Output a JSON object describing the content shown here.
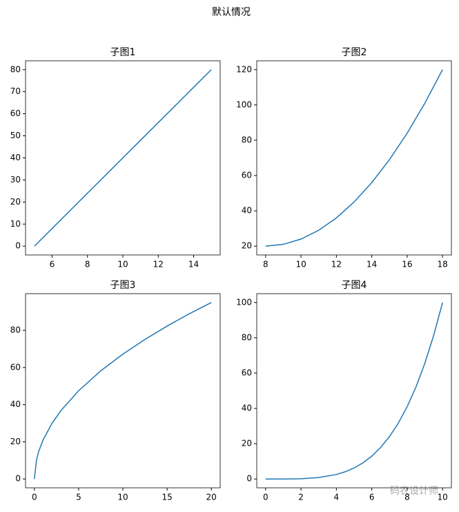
{
  "title": "默认情况",
  "watermark": "码农设计师",
  "chart_data": [
    {
      "type": "line",
      "title": "子图1",
      "x": [
        5,
        6,
        7,
        8,
        9,
        10,
        11,
        12,
        13,
        14,
        15
      ],
      "series": [
        {
          "color": "#1f77b4",
          "values": [
            0,
            8,
            16,
            24,
            32,
            40,
            48,
            56,
            64,
            72,
            80
          ]
        }
      ],
      "xlim": [
        4.5,
        15.5
      ],
      "xticks": [
        6,
        8,
        10,
        12,
        14
      ],
      "ylim": [
        -4,
        84
      ],
      "yticks": [
        0,
        10,
        20,
        30,
        40,
        50,
        60,
        70,
        80
      ]
    },
    {
      "type": "line",
      "title": "子图2",
      "x": [
        8,
        9,
        10,
        11,
        12,
        13,
        14,
        15,
        16,
        17,
        18
      ],
      "series": [
        {
          "color": "#1f77b4",
          "values": [
            20,
            21,
            24,
            29,
            36,
            45,
            56,
            69,
            84,
            101,
            120
          ]
        }
      ],
      "xlim": [
        7.5,
        18.5
      ],
      "xticks": [
        8,
        10,
        12,
        14,
        16,
        18
      ],
      "ylim": [
        15,
        125
      ],
      "yticks": [
        20,
        40,
        60,
        80,
        100,
        120
      ]
    },
    {
      "type": "line",
      "title": "子图3",
      "x": [
        0,
        0.25,
        0.5,
        1,
        2,
        3,
        5,
        7.5,
        10,
        12.5,
        15,
        17.5,
        20
      ],
      "series": [
        {
          "color": "#1f77b4",
          "values": [
            0,
            10.6,
            15,
            21.2,
            30,
            36.8,
            47.5,
            58.2,
            67.2,
            75.1,
            82.3,
            88.9,
            95
          ]
        }
      ],
      "xlim": [
        -1,
        21
      ],
      "xticks": [
        0,
        5,
        10,
        15,
        20
      ],
      "ylim": [
        -4.75,
        99.75
      ],
      "yticks": [
        0,
        20,
        40,
        60,
        80
      ]
    },
    {
      "type": "line",
      "title": "子图4",
      "x": [
        0,
        1,
        2,
        3,
        4,
        4.5,
        5,
        5.5,
        6,
        6.5,
        7,
        7.5,
        8,
        8.5,
        9,
        9.5,
        10
      ],
      "series": [
        {
          "color": "#1f77b4",
          "values": [
            0,
            0.01,
            0.16,
            0.81,
            2.56,
            4.1,
            6.25,
            9.15,
            12.96,
            17.85,
            24.01,
            31.64,
            40.96,
            52.2,
            65.61,
            81.45,
            100
          ]
        }
      ],
      "xlim": [
        -0.5,
        10.5
      ],
      "xticks": [
        0,
        2,
        4,
        6,
        8,
        10
      ],
      "ylim": [
        -5,
        105
      ],
      "yticks": [
        0,
        20,
        40,
        60,
        80,
        100
      ]
    }
  ]
}
